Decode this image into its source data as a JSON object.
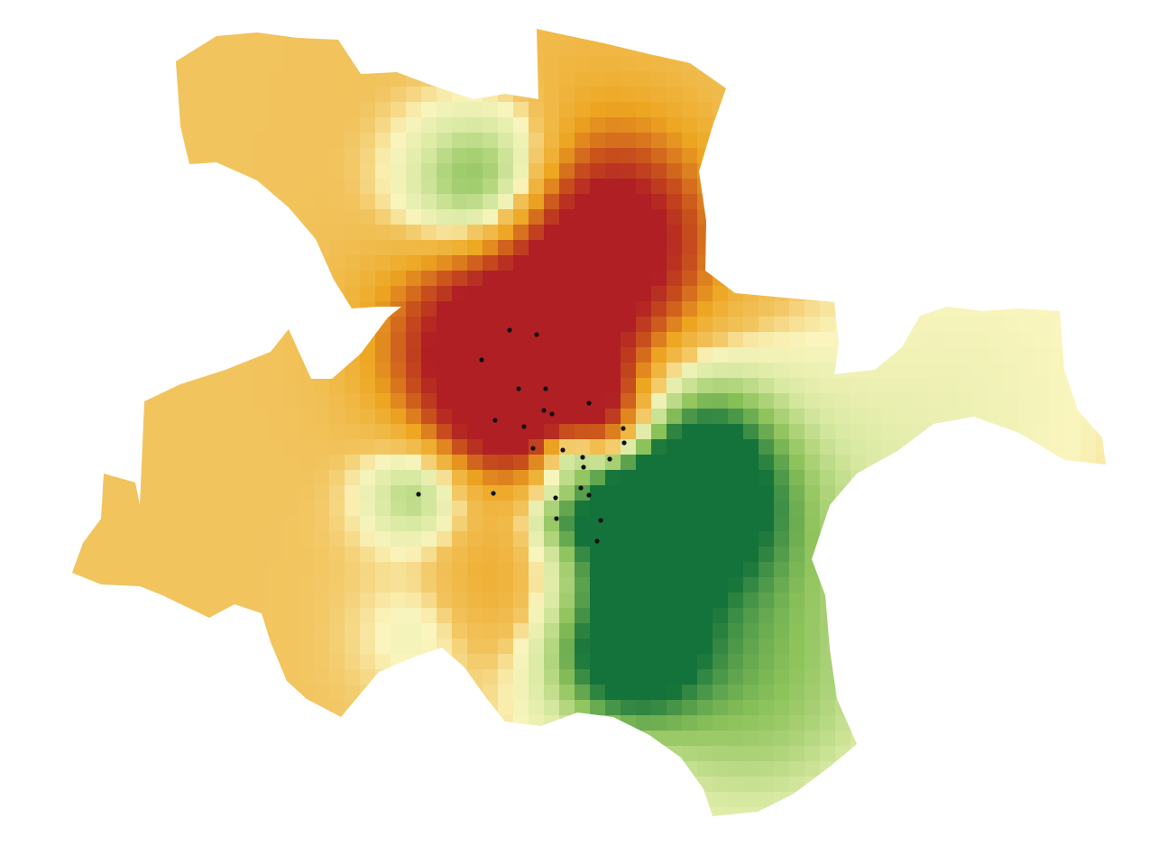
{
  "map": {
    "type": "raster-heatmap",
    "colors": {
      "base": "#F2C45E",
      "hot_light": "#EDA621",
      "hot_mid": "#C9521C",
      "hot_max": "#B01F24",
      "cool_light": "#FAF5BE",
      "cool_mid": "#D6E8A0",
      "cool_strong": "#8CC25A",
      "cool_max": "#14733A",
      "points": "#111111"
    },
    "legend": null,
    "labels": []
  }
}
